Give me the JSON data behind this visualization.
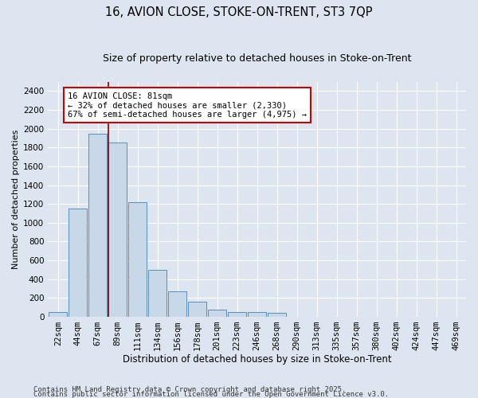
{
  "title1": "16, AVION CLOSE, STOKE-ON-TRENT, ST3 7QP",
  "title2": "Size of property relative to detached houses in Stoke-on-Trent",
  "xlabel": "Distribution of detached houses by size in Stoke-on-Trent",
  "ylabel": "Number of detached properties",
  "categories": [
    "22sqm",
    "44sqm",
    "67sqm",
    "89sqm",
    "111sqm",
    "134sqm",
    "156sqm",
    "178sqm",
    "201sqm",
    "223sqm",
    "246sqm",
    "268sqm",
    "290sqm",
    "313sqm",
    "335sqm",
    "357sqm",
    "380sqm",
    "402sqm",
    "424sqm",
    "447sqm",
    "469sqm"
  ],
  "values": [
    50,
    1150,
    1950,
    1850,
    1220,
    500,
    270,
    160,
    80,
    50,
    50,
    40,
    0,
    0,
    0,
    0,
    0,
    0,
    0,
    0,
    0
  ],
  "bar_color": "#c8d8e8",
  "bar_edge_color": "#5b8db8",
  "vline_color": "#8b0000",
  "vline_pos": 2.55,
  "annotation_text": "16 AVION CLOSE: 81sqm\n← 32% of detached houses are smaller (2,330)\n67% of semi-detached houses are larger (4,975) →",
  "annotation_box_color": "#ffffff",
  "annotation_box_edge": "#cc0000",
  "background_color": "#dde6f0",
  "grid_color": "#ffffff",
  "ylim": [
    0,
    2500
  ],
  "yticks": [
    0,
    200,
    400,
    600,
    800,
    1000,
    1200,
    1400,
    1600,
    1800,
    2000,
    2200,
    2400
  ],
  "footer1": "Contains HM Land Registry data © Crown copyright and database right 2025.",
  "footer2": "Contains public sector information licensed under the Open Government Licence v3.0.",
  "title1_fontsize": 10.5,
  "title2_fontsize": 9,
  "xlabel_fontsize": 8.5,
  "ylabel_fontsize": 8,
  "tick_fontsize": 7.5,
  "footer_fontsize": 6.5,
  "annot_fontsize": 7.5
}
